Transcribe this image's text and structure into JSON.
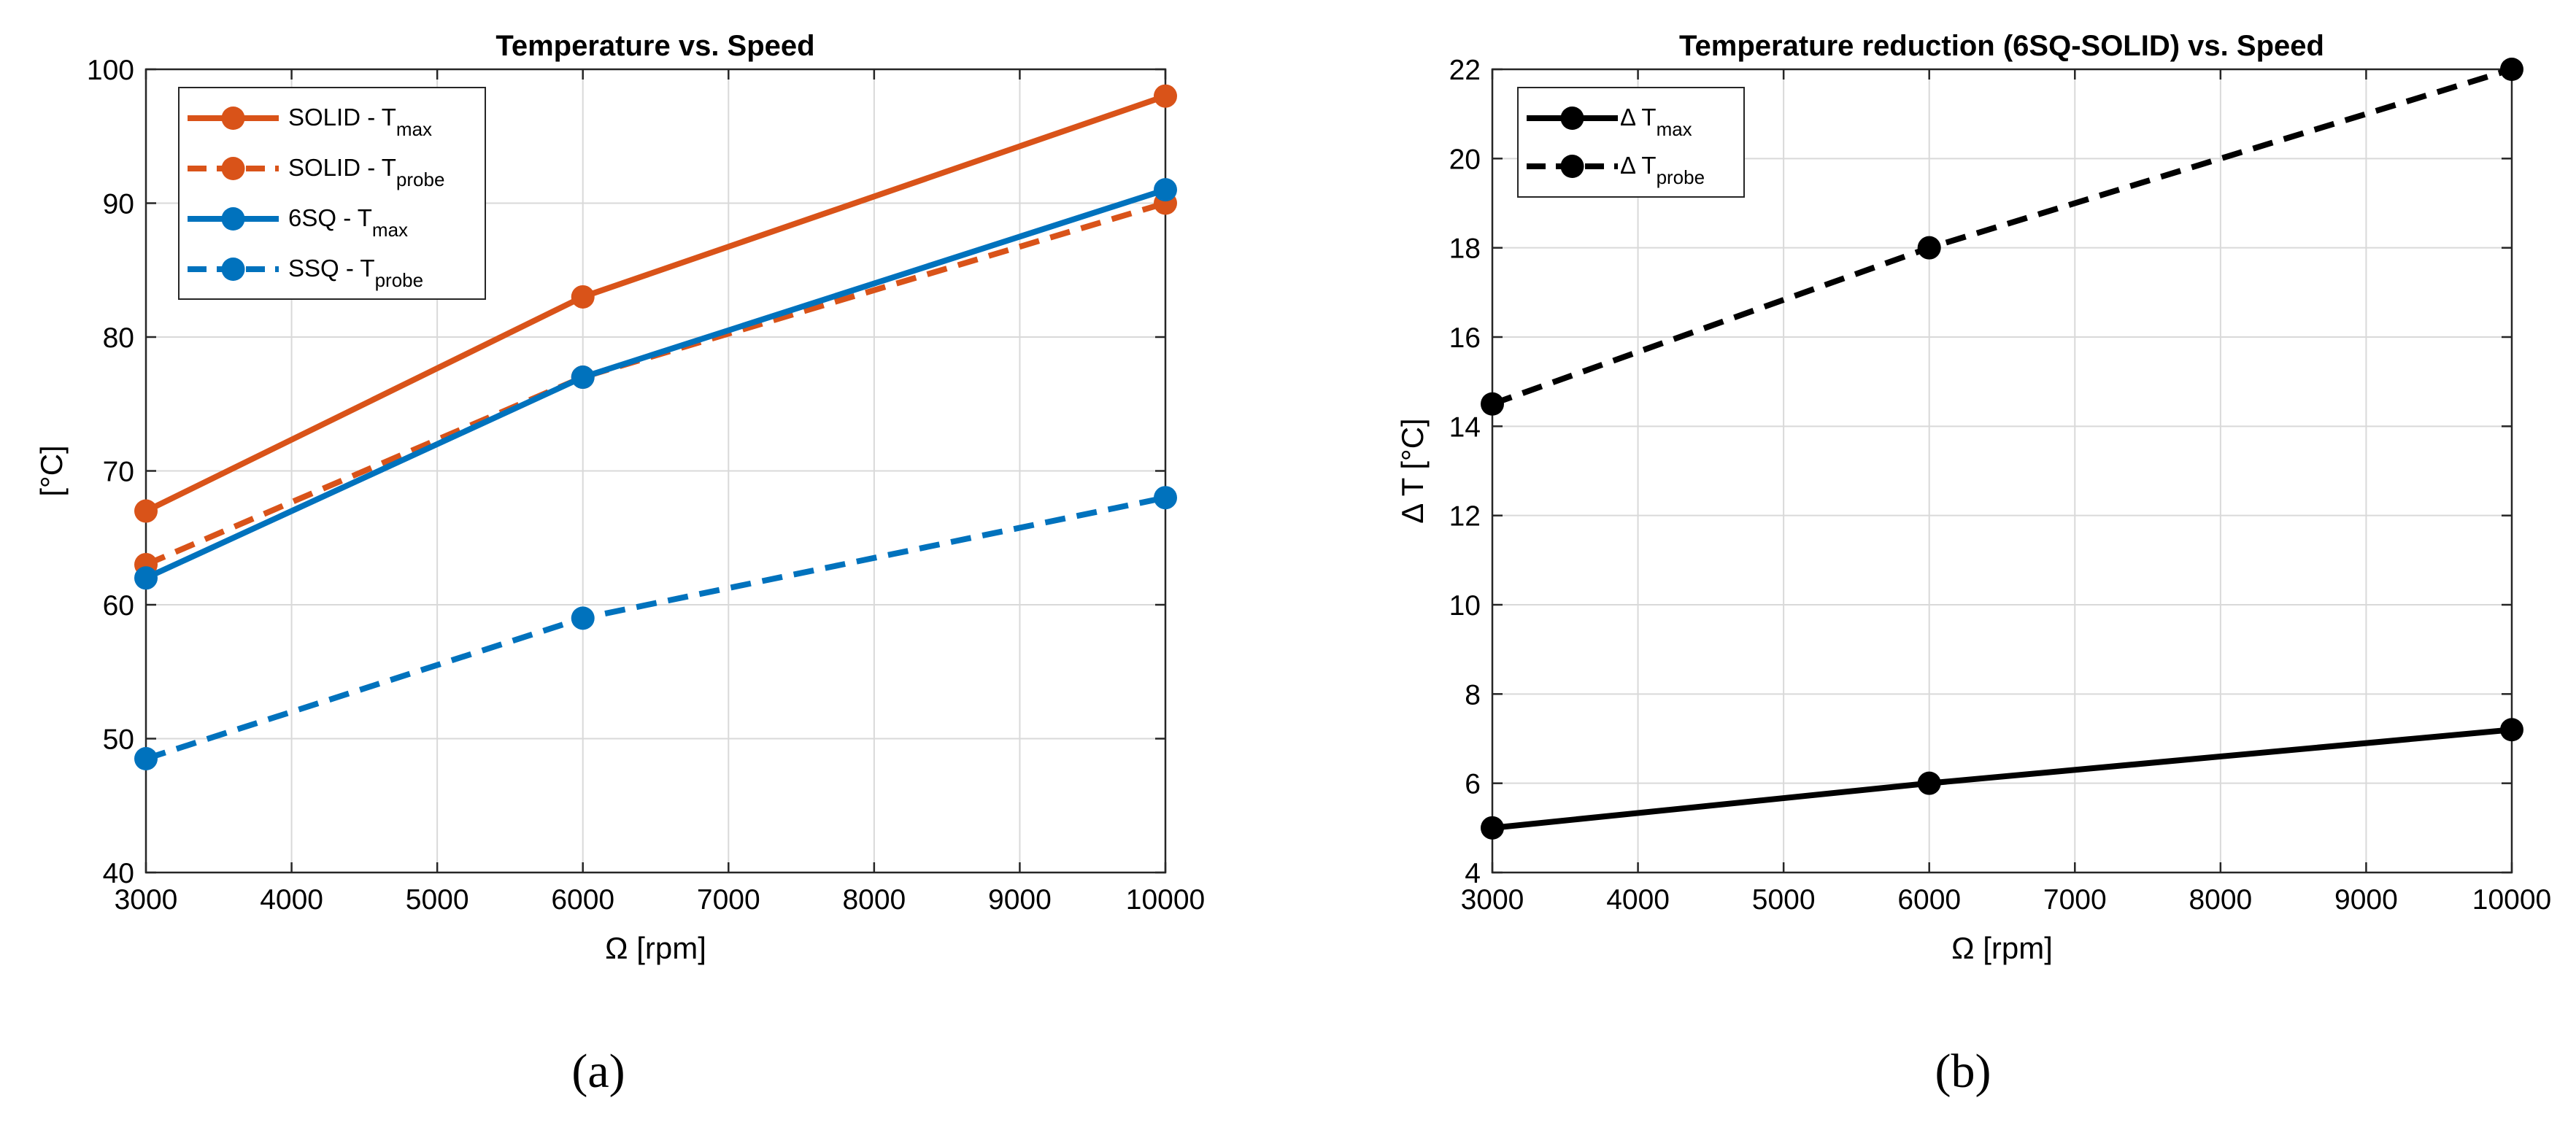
{
  "chart_data": [
    {
      "type": "line",
      "title": "Temperature vs. Speed",
      "xlabel": "Ω [rpm]",
      "ylabel": "[°C]",
      "x": [
        3000,
        6000,
        10000
      ],
      "xlim": [
        3000,
        10000
      ],
      "ylim": [
        40,
        100
      ],
      "xticks": [
        "3000",
        "4000",
        "5000",
        "6000",
        "7000",
        "8000",
        "9000",
        "10000"
      ],
      "yticks": [
        "40",
        "50",
        "60",
        "70",
        "80",
        "90",
        "100"
      ],
      "grid": true,
      "legend_position": "top-left",
      "series": [
        {
          "name": "SOLID - T",
          "sub": "max",
          "color": "#D95319",
          "dash": false,
          "values": [
            67,
            83,
            98
          ]
        },
        {
          "name": "SOLID - T",
          "sub": "probe",
          "color": "#D95319",
          "dash": true,
          "values": [
            63,
            77,
            90
          ]
        },
        {
          "name": "6SQ - T",
          "sub": "max",
          "color": "#0072BD",
          "dash": false,
          "values": [
            62,
            77,
            91
          ]
        },
        {
          "name": "SSQ - T",
          "sub": "probe",
          "color": "#0072BD",
          "dash": true,
          "values": [
            48.5,
            59,
            68
          ]
        }
      ],
      "caption": "(a)"
    },
    {
      "type": "line",
      "title": "Temperature reduction (6SQ-SOLID) vs. Speed",
      "xlabel": "Ω [rpm]",
      "ylabel": "Δ T [°C]",
      "x": [
        3000,
        6000,
        10000
      ],
      "xlim": [
        3000,
        10000
      ],
      "ylim": [
        4,
        22
      ],
      "xticks": [
        "3000",
        "4000",
        "5000",
        "6000",
        "7000",
        "8000",
        "9000",
        "10000"
      ],
      "yticks": [
        "4",
        "6",
        "8",
        "10",
        "12",
        "14",
        "16",
        "18",
        "20",
        "22"
      ],
      "grid": true,
      "legend_position": "top-left",
      "series": [
        {
          "name": "Δ T",
          "sub": "max",
          "color": "#000000",
          "dash": false,
          "values": [
            5,
            6,
            7.2
          ]
        },
        {
          "name": "Δ T",
          "sub": "probe",
          "color": "#000000",
          "dash": true,
          "values": [
            14.5,
            18,
            22
          ]
        }
      ],
      "caption": "(b)"
    }
  ]
}
